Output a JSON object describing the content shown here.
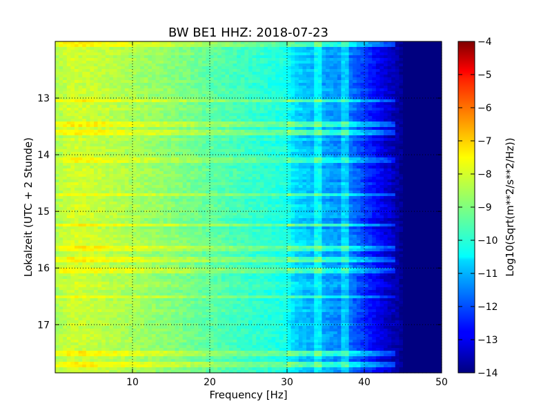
{
  "chart_data": {
    "type": "heatmap",
    "title": "BW BE1 HHZ: 2018-07-23",
    "xlabel": "Frequency [Hz]",
    "ylabel": "Lokalzeit (UTC + 2 Stunde)",
    "xlim": [
      0,
      50
    ],
    "ylim": [
      12.0,
      17.85
    ],
    "y_inverted": true,
    "x_ticks": [
      10,
      20,
      30,
      40,
      50
    ],
    "x_tick_labels": [
      "10",
      "20",
      "30",
      "40",
      "50"
    ],
    "y_ticks": [
      13,
      14,
      15,
      16,
      17
    ],
    "y_tick_labels": [
      "13",
      "14",
      "15",
      "16",
      "17"
    ],
    "grid": true,
    "colormap": "jet",
    "colorbar": {
      "label": "Log10(Sqrt(m**2/s**2/Hz))",
      "vmin": -14,
      "vmax": -4,
      "ticks": [
        -4,
        -5,
        -6,
        -7,
        -8,
        -9,
        -10,
        -11,
        -12,
        -13,
        -14
      ],
      "tick_labels": [
        "−4",
        "−5",
        "−6",
        "−7",
        "−8",
        "−9",
        "−10",
        "−11",
        "−12",
        "−13",
        "−14"
      ]
    },
    "spectrum_profile": {
      "frequency_hz": [
        0,
        2,
        5,
        10,
        15,
        20,
        25,
        30,
        31,
        33,
        35,
        38,
        40,
        42,
        44,
        45,
        47,
        50
      ],
      "log10_amplitude": [
        -8.6,
        -8.2,
        -8.3,
        -8.6,
        -8.9,
        -9.3,
        -9.7,
        -10.0,
        -10.6,
        -10.9,
        -11.1,
        -11.5,
        -12.2,
        -12.9,
        -13.5,
        -13.9,
        -14.0,
        -14.0
      ]
    },
    "noise_lines_hz": [
      34.0,
      37.5
    ],
    "bright_time_bands": [
      12.05,
      13.05,
      13.45,
      13.62,
      14.1,
      14.7,
      15.25,
      15.65,
      15.85,
      16.05,
      16.5,
      17.5,
      17.7
    ]
  },
  "colors": {
    "background": "#ffffff",
    "axis": "#000000",
    "grid": "#000000"
  }
}
